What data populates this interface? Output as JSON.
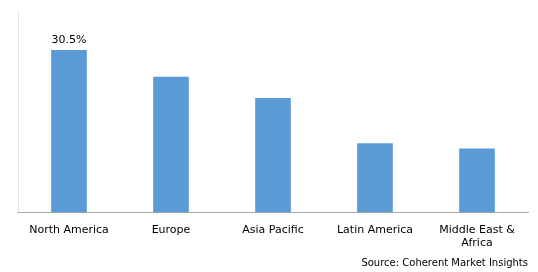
{
  "chart_data": {
    "type": "bar",
    "categories": [
      "North America",
      "Europe",
      "Asia Pacific",
      "Latin America",
      "Middle East &\nAfrica"
    ],
    "values": [
      30.5,
      25.5,
      21.5,
      13.0,
      12.0
    ],
    "value_labels": [
      "30.5%",
      null,
      null,
      null,
      null
    ],
    "color": "#5b9bd5",
    "ylim": [
      0,
      38
    ],
    "tick_labels": "x",
    "grid": false,
    "annotations": [
      "Source: Coherent Market Insights"
    ]
  }
}
